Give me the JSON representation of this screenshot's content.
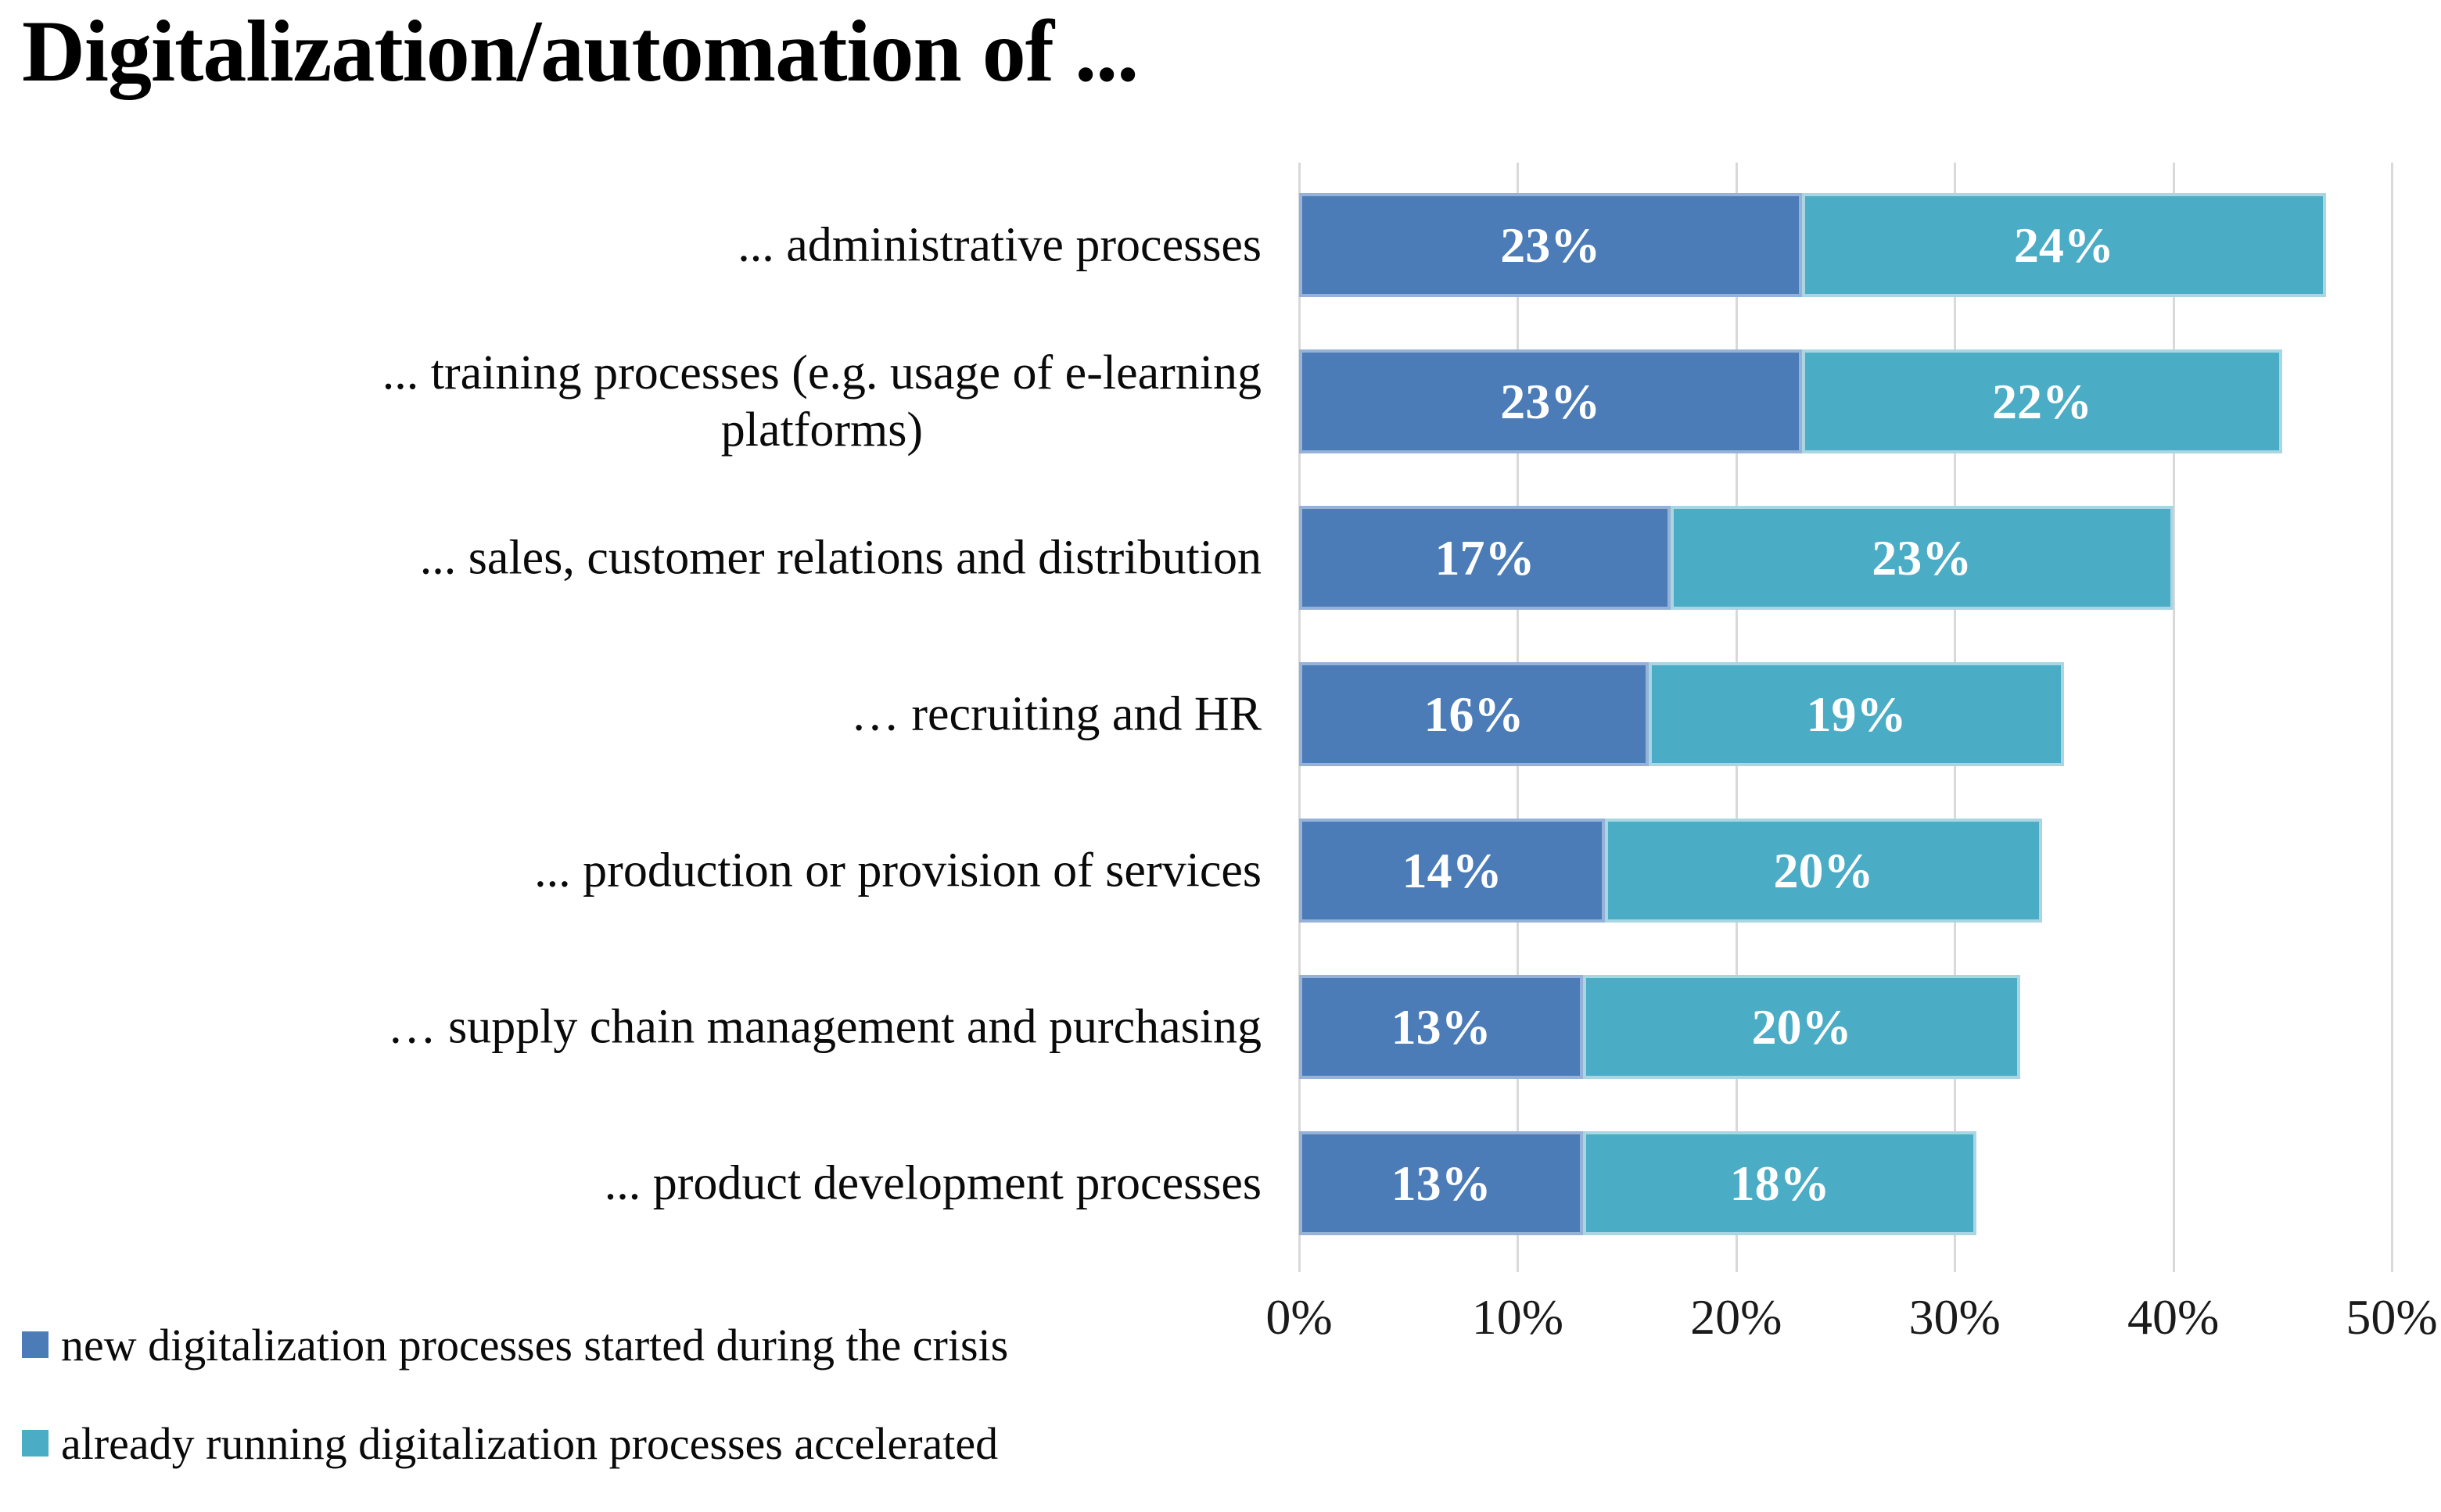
{
  "title": "Digitalization/automation of ...",
  "legend": {
    "items": [
      {
        "label": "new digitalization processes started during the crisis",
        "color": "#4B7CB7",
        "border": "#96B2D8"
      },
      {
        "label": "already running digitalization processes accelerated",
        "color": "#4BACC6",
        "border": "#A9D6E2"
      }
    ]
  },
  "chart_data": {
    "type": "bar",
    "orientation": "horizontal",
    "stacked": true,
    "title": "Digitalization/automation of ...",
    "categories": [
      "... administrative processes",
      "... training processes (e.g. usage of e-learning\nplatforms)",
      "... sales, customer relations and distribution",
      "… recruiting and HR",
      "... production or provision of services",
      "… supply chain management and purchasing",
      "... product development processes"
    ],
    "series": [
      {
        "name": "new digitalization processes started during the crisis",
        "color": "#4B7CB7",
        "border_color": "#96B2D8",
        "values": [
          23,
          23,
          17,
          16,
          14,
          13,
          13
        ]
      },
      {
        "name": "already running digitalization processes accelerated",
        "color": "#4BACC6",
        "border_color": "#A9D6E2",
        "values": [
          24,
          22,
          23,
          19,
          20,
          20,
          18
        ]
      }
    ],
    "xlim": [
      0,
      50
    ],
    "x_ticks": [
      "0%",
      "10%",
      "20%",
      "30%",
      "40%",
      "50%"
    ],
    "grid": true,
    "gridline_color": "#D9D9D9",
    "data_labels": true,
    "data_label_suffix": "%",
    "data_label_color": "#FFFFFF",
    "legend_position": "bottom-left"
  }
}
